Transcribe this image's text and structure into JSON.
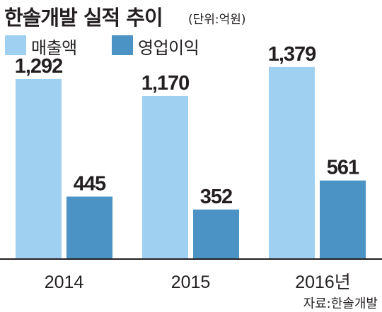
{
  "chart_data": {
    "type": "bar",
    "title": "한솔개발 실적 추이",
    "unit": "(단위:억원)",
    "categories": [
      "2014",
      "2015",
      "2016년"
    ],
    "series": [
      {
        "name": "매출액",
        "values": [
          1292,
          1170,
          1379
        ],
        "color": "#9fd0f2"
      },
      {
        "name": "영업이익",
        "values": [
          445,
          352,
          561
        ],
        "color": "#4a93c4"
      }
    ],
    "source": "자료:한솔개발",
    "legend_position": "top-left",
    "grid": false
  }
}
